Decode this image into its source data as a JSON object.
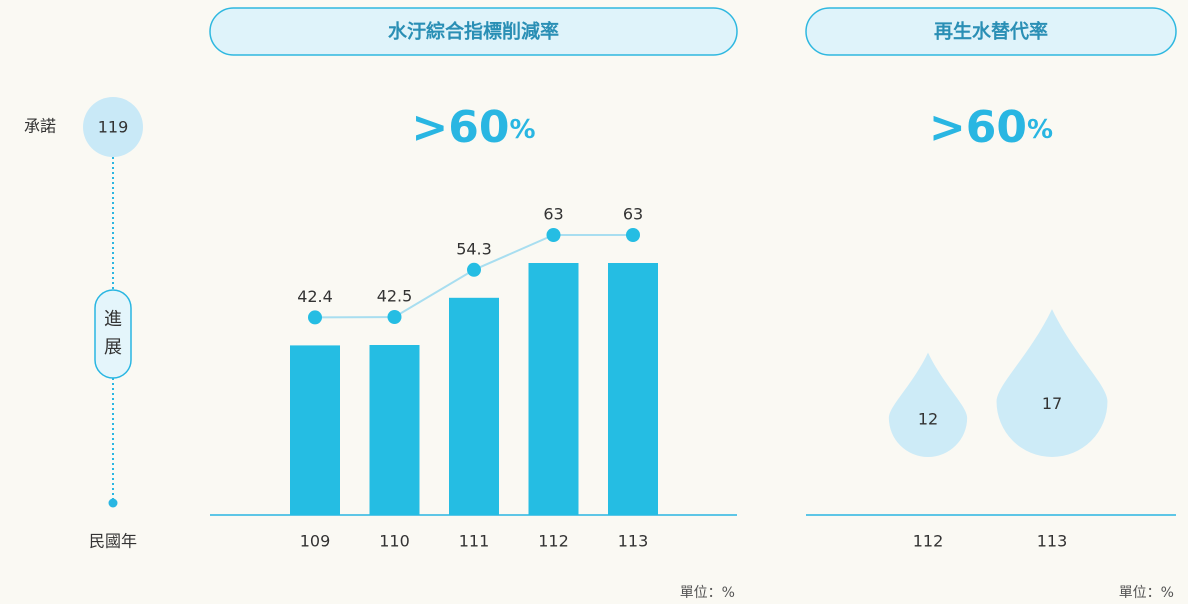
{
  "sidebar": {
    "commit_label": "承諾",
    "commit_year": "119",
    "progress_label": [
      "進",
      "展"
    ],
    "year_label": "民國年"
  },
  "chart_data": [
    {
      "type": "bar",
      "title": "水汙綜合指標削減率",
      "target": ">60",
      "target_unit": "%",
      "categories": [
        "109",
        "110",
        "111",
        "112",
        "113"
      ],
      "values": [
        42.4,
        42.5,
        54.3,
        63,
        63
      ],
      "color": "#25bde3",
      "line_color": "#a8def0",
      "ylim": [
        0,
        85
      ],
      "unit_label": "單位：%"
    },
    {
      "type": "drop",
      "title": "再生水替代率",
      "target": ">60",
      "target_unit": "%",
      "categories": [
        "112",
        "113"
      ],
      "values": [
        12,
        17
      ],
      "color": "#cdebf7",
      "unit_label": "單位：%"
    }
  ]
}
